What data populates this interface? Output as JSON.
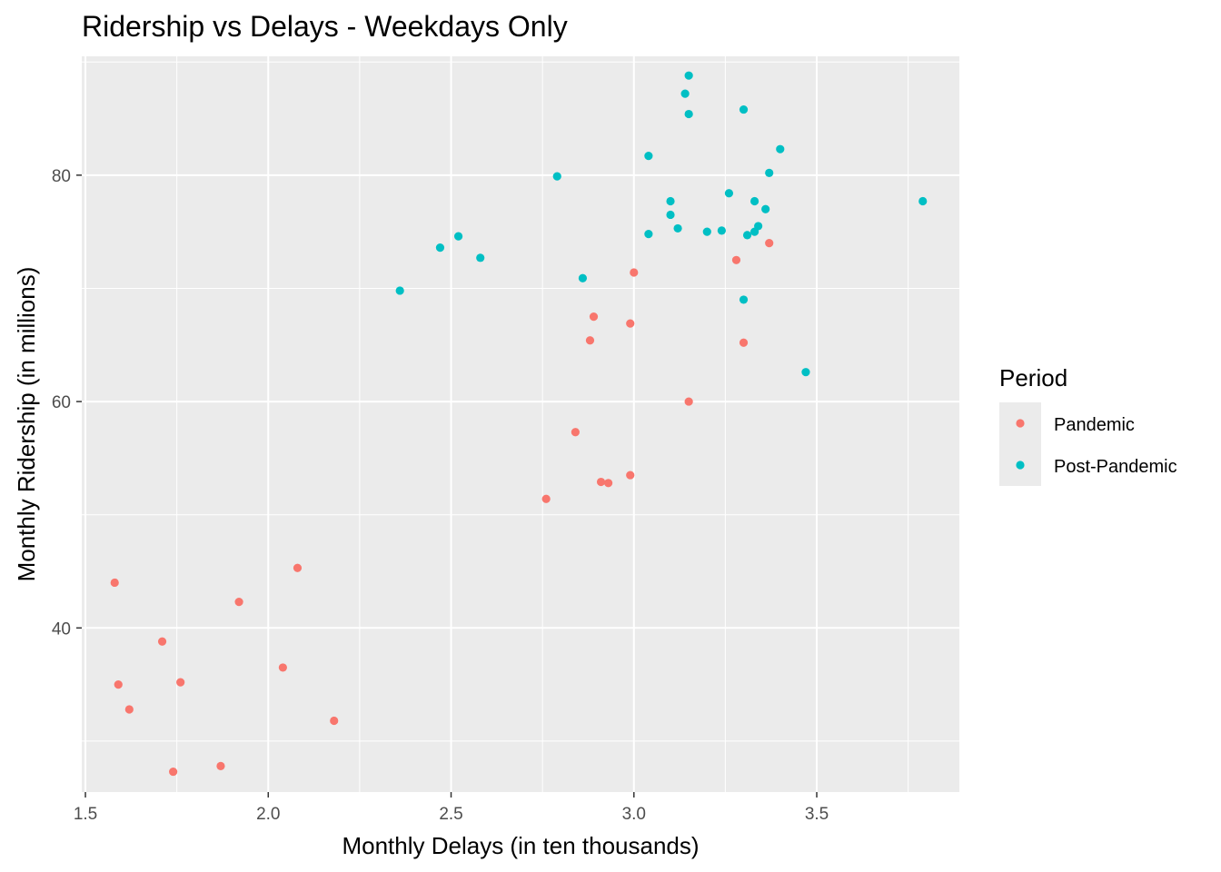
{
  "chart_data": {
    "type": "scatter",
    "title": "Ridership vs Delays - Weekdays Only",
    "xlabel": "Monthly Delays (in ten thousands)",
    "ylabel": "Monthly Ridership (in millions)",
    "xlim": [
      1.49,
      3.89
    ],
    "ylim": [
      25.5,
      90.5
    ],
    "xticks": [
      1.5,
      2.0,
      2.5,
      3.0,
      3.5
    ],
    "xtick_labels": [
      "1.5",
      "2.0",
      "2.5",
      "3.0",
      "3.5"
    ],
    "yticks": [
      40,
      60,
      80
    ],
    "ytick_labels": [
      "40",
      "60",
      "80"
    ],
    "grid": true,
    "background": "#ebebeb",
    "legend": {
      "title": "Period",
      "position": "right"
    },
    "series": [
      {
        "name": "Pandemic",
        "color": "#f8766d",
        "points": [
          [
            1.58,
            44.0
          ],
          [
            1.59,
            35.0
          ],
          [
            1.62,
            32.8
          ],
          [
            1.71,
            38.8
          ],
          [
            1.74,
            27.3
          ],
          [
            1.76,
            35.2
          ],
          [
            1.87,
            27.8
          ],
          [
            1.92,
            42.3
          ],
          [
            2.04,
            36.5
          ],
          [
            2.08,
            45.3
          ],
          [
            2.18,
            31.8
          ],
          [
            2.76,
            51.4
          ],
          [
            2.84,
            57.3
          ],
          [
            2.88,
            65.4
          ],
          [
            2.89,
            67.5
          ],
          [
            2.91,
            52.9
          ],
          [
            2.93,
            52.8
          ],
          [
            2.99,
            66.9
          ],
          [
            2.99,
            53.5
          ],
          [
            3.0,
            71.4
          ],
          [
            3.15,
            60.0
          ],
          [
            3.28,
            72.5
          ],
          [
            3.3,
            65.2
          ],
          [
            3.37,
            74.0
          ]
        ]
      },
      {
        "name": "Post-Pandemic",
        "color": "#00bfc4",
        "points": [
          [
            2.36,
            69.8
          ],
          [
            2.47,
            73.6
          ],
          [
            2.52,
            74.6
          ],
          [
            2.58,
            72.7
          ],
          [
            2.79,
            79.9
          ],
          [
            2.86,
            70.9
          ],
          [
            3.04,
            81.7
          ],
          [
            3.04,
            74.8
          ],
          [
            3.1,
            77.7
          ],
          [
            3.1,
            76.5
          ],
          [
            3.12,
            75.3
          ],
          [
            3.14,
            87.2
          ],
          [
            3.15,
            88.8
          ],
          [
            3.15,
            85.4
          ],
          [
            3.2,
            75.0
          ],
          [
            3.24,
            75.1
          ],
          [
            3.26,
            78.4
          ],
          [
            3.3,
            85.8
          ],
          [
            3.3,
            69.0
          ],
          [
            3.31,
            74.7
          ],
          [
            3.33,
            75.0
          ],
          [
            3.33,
            77.7
          ],
          [
            3.34,
            75.5
          ],
          [
            3.36,
            77.0
          ],
          [
            3.37,
            80.2
          ],
          [
            3.4,
            82.3
          ],
          [
            3.47,
            62.6
          ],
          [
            3.79,
            77.7
          ]
        ]
      }
    ]
  }
}
